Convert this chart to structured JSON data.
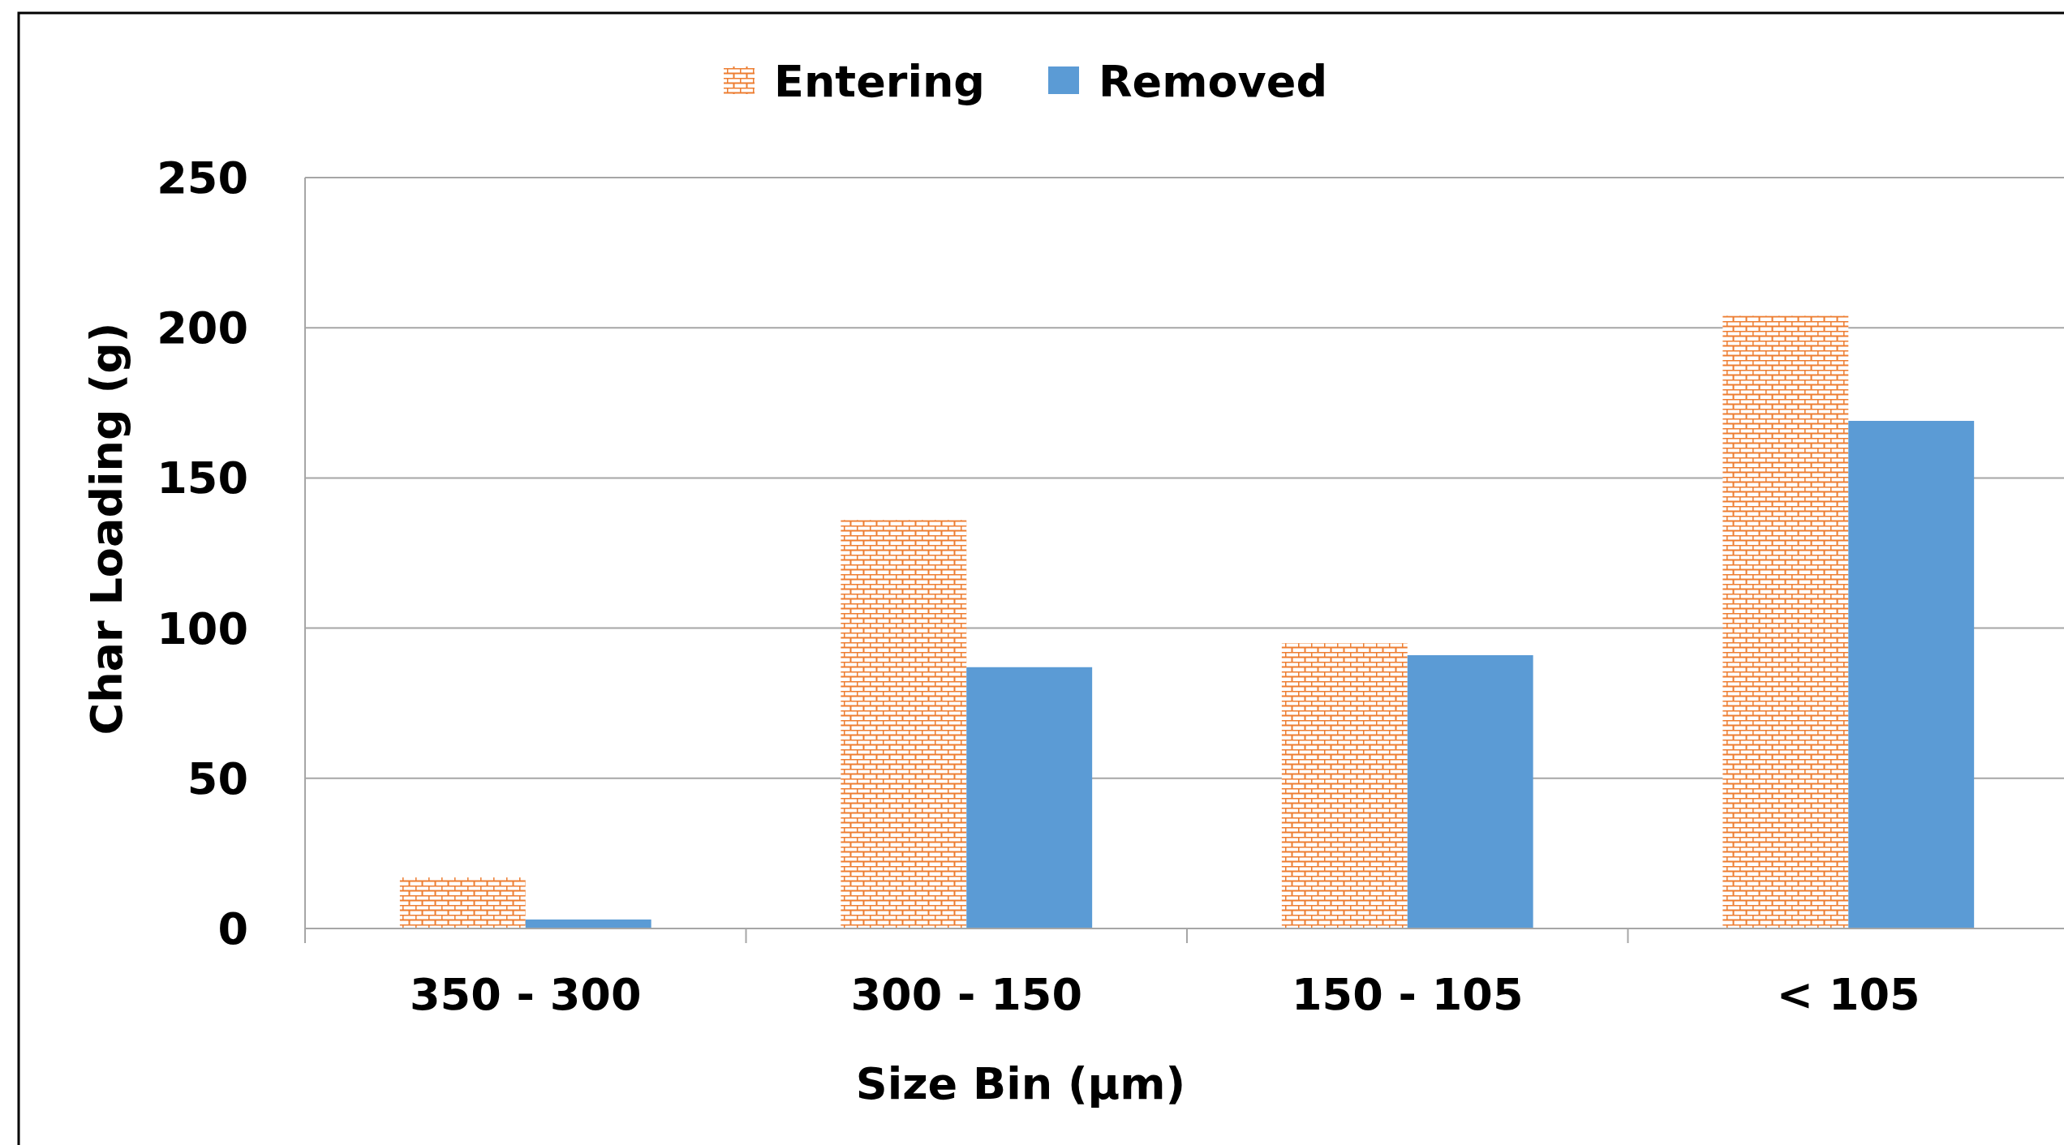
{
  "chart_data": {
    "type": "bar",
    "xlabel": "Size Bin (µm)",
    "ylabel": "Char Loading (g)",
    "categories": [
      "350 - 300",
      "300 - 150",
      "150 - 105",
      "< 105"
    ],
    "series": [
      {
        "name": "Entering",
        "color": "#ed7d31",
        "values": [
          17,
          136,
          95,
          204
        ]
      },
      {
        "name": "Removed",
        "color": "#5b9bd5",
        "values": [
          3,
          87,
          91,
          169
        ]
      }
    ],
    "ylim": [
      0,
      250
    ],
    "yticks": [
      0,
      50,
      100,
      150,
      200,
      250
    ],
    "grid": "y",
    "legend": "top"
  }
}
